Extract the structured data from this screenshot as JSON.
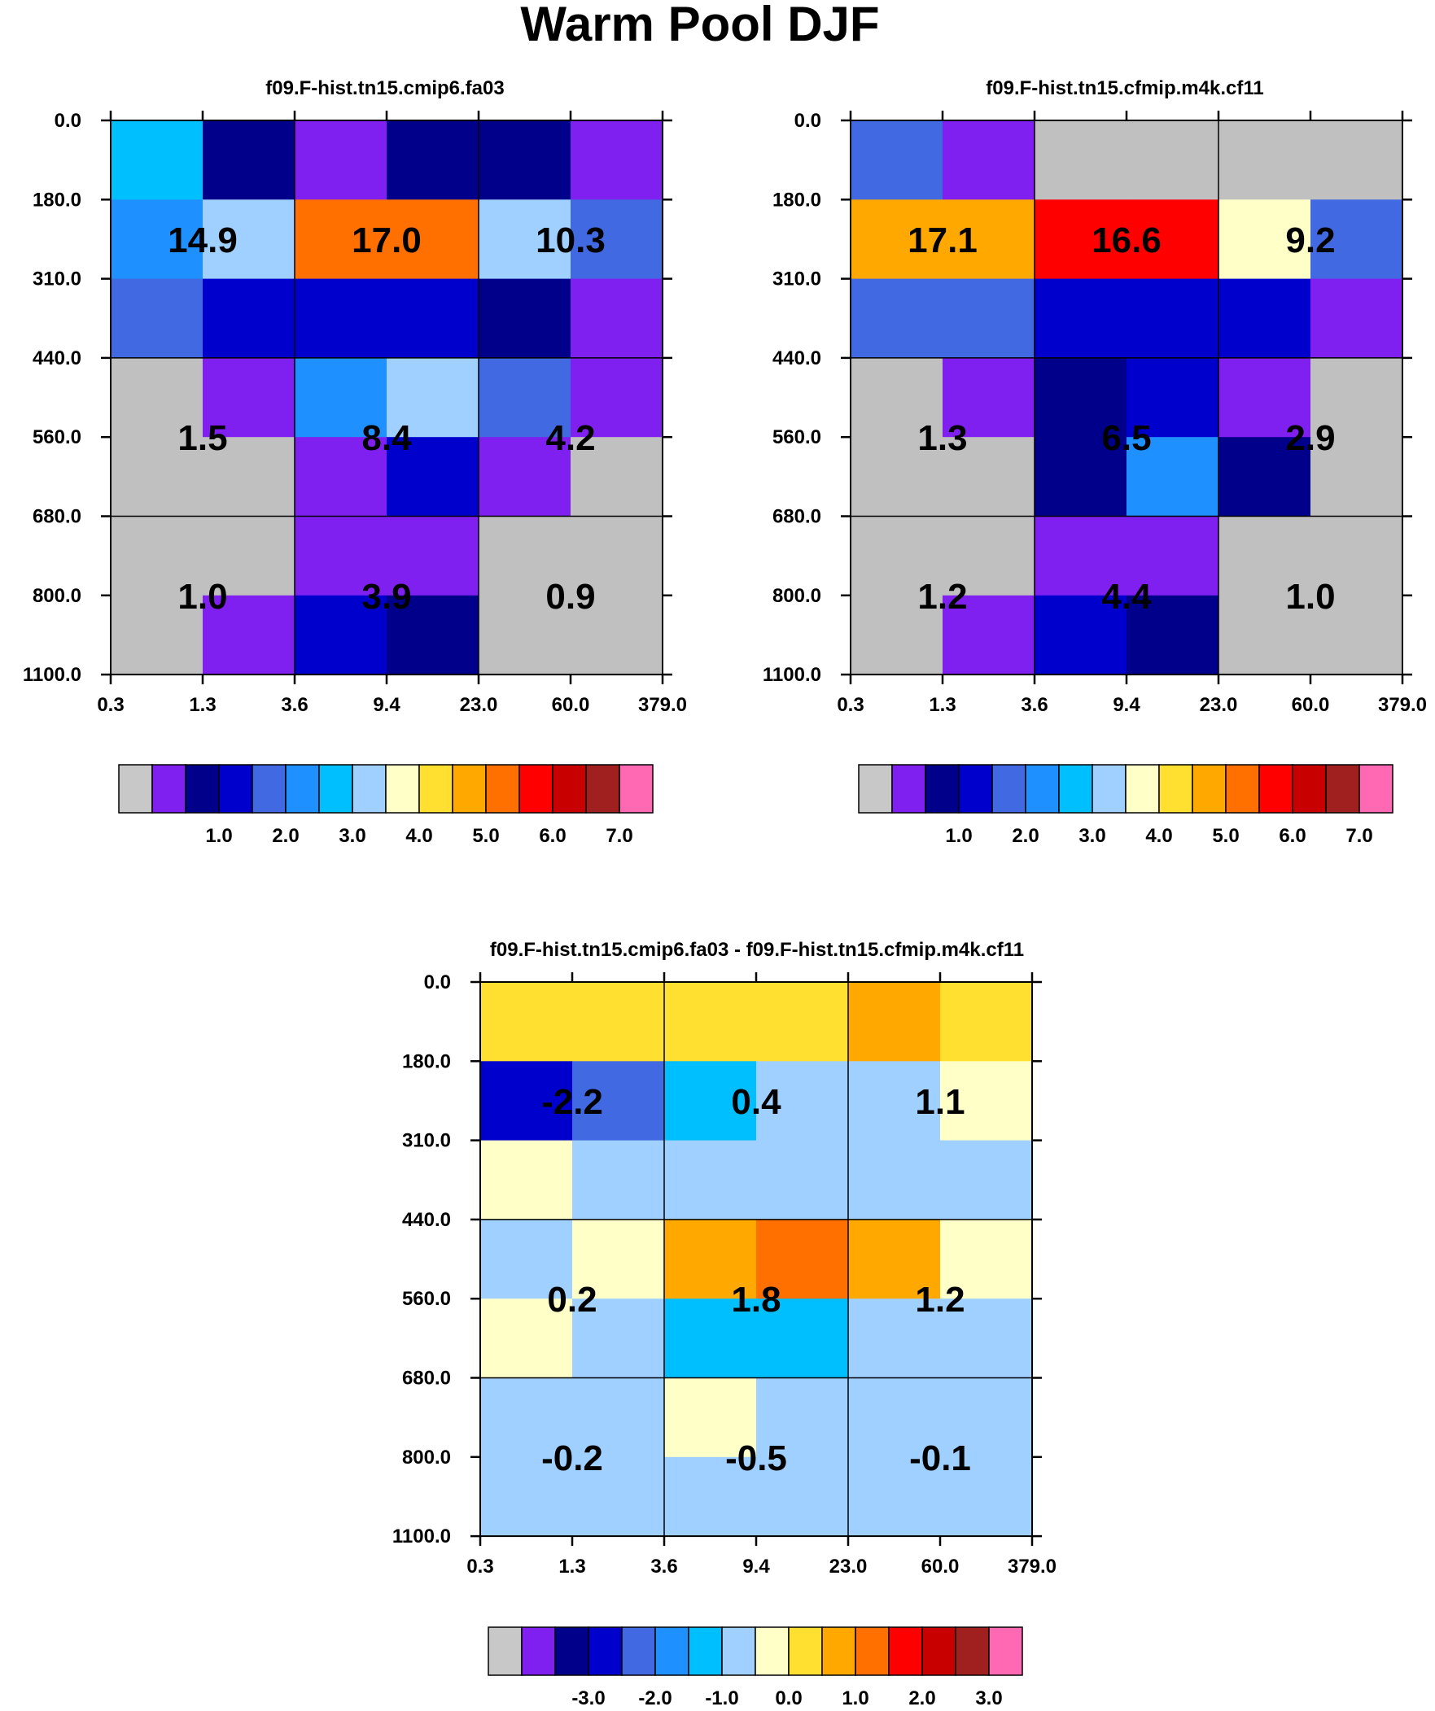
{
  "title": "Warm Pool DJF",
  "chart_data": [
    {
      "type": "heatmap",
      "title": "f09.F-hist.tn15.cmip6.fa03",
      "x_ticks": [
        "0.3",
        "1.3",
        "3.6",
        "9.4",
        "23.0",
        "60.0",
        "379.0"
      ],
      "y_ticks": [
        "0.0",
        "180.0",
        "310.0",
        "440.0",
        "560.0",
        "680.0",
        "800.0",
        "1100.0"
      ],
      "cells": [
        [
          "#00bfff",
          "#00008b",
          "#8020f0",
          "#00008b",
          "#00008b",
          "#8020f0"
        ],
        [
          "#1e90ff",
          "#a0d0ff",
          "#ff7000",
          "#ff7000",
          "#a0d0ff",
          "#4169e1"
        ],
        [
          "#4169e1",
          "#0000cd",
          "#0000cd",
          "#0000cd",
          "#00008b",
          "#8020f0"
        ],
        [
          "#c0c0c0",
          "#8020f0",
          "#1e90ff",
          "#a0d0ff",
          "#4169e1",
          "#8020f0"
        ],
        [
          "#c0c0c0",
          "#c0c0c0",
          "#8020f0",
          "#0000cd",
          "#8020f0",
          "#c0c0c0"
        ],
        [
          "#c0c0c0",
          "#c0c0c0",
          "#8020f0",
          "#8020f0",
          "#c0c0c0",
          "#c0c0c0"
        ],
        [
          "#c0c0c0",
          "#8020f0",
          "#0000cd",
          "#00008b",
          "#c0c0c0",
          "#c0c0c0"
        ]
      ],
      "block_values": [
        [
          "14.9",
          "17.0",
          "10.3"
        ],
        [
          "1.5",
          "8.4",
          "4.2"
        ],
        [
          "1.0",
          "3.9",
          "0.9"
        ]
      ],
      "colorbar": {
        "colors": [
          "#c8c8c8",
          "#8020f0",
          "#00008b",
          "#0000cd",
          "#4169e1",
          "#1e90ff",
          "#00bfff",
          "#a0d0ff",
          "#ffffc8",
          "#ffe030",
          "#ffa800",
          "#ff7000",
          "#ff0000",
          "#c80000",
          "#a02020",
          "#ff69b4"
        ],
        "labels": [
          "1.0",
          "2.0",
          "3.0",
          "4.0",
          "5.0",
          "6.0",
          "7.0"
        ]
      }
    },
    {
      "type": "heatmap",
      "title": "f09.F-hist.tn15.cfmip.m4k.cf11",
      "x_ticks": [
        "0.3",
        "1.3",
        "3.6",
        "9.4",
        "23.0",
        "60.0",
        "379.0"
      ],
      "y_ticks": [
        "0.0",
        "180.0",
        "310.0",
        "440.0",
        "560.0",
        "680.0",
        "800.0",
        "1100.0"
      ],
      "cells": [
        [
          "#4169e1",
          "#8020f0",
          "#c0c0c0",
          "#c0c0c0",
          "#c0c0c0",
          "#c0c0c0"
        ],
        [
          "#ffa800",
          "#ffa800",
          "#ff0000",
          "#ff0000",
          "#ffffc8",
          "#4169e1"
        ],
        [
          "#4169e1",
          "#4169e1",
          "#0000cd",
          "#0000cd",
          "#0000cd",
          "#8020f0"
        ],
        [
          "#c0c0c0",
          "#8020f0",
          "#00008b",
          "#0000cd",
          "#8020f0",
          "#c0c0c0"
        ],
        [
          "#c0c0c0",
          "#c0c0c0",
          "#00008b",
          "#1e90ff",
          "#00008b",
          "#c0c0c0"
        ],
        [
          "#c0c0c0",
          "#c0c0c0",
          "#8020f0",
          "#8020f0",
          "#c0c0c0",
          "#c0c0c0"
        ],
        [
          "#c0c0c0",
          "#8020f0",
          "#0000cd",
          "#00008b",
          "#c0c0c0",
          "#c0c0c0"
        ]
      ],
      "block_values": [
        [
          "17.1",
          "16.6",
          "9.2"
        ],
        [
          "1.3",
          "6.5",
          "2.9"
        ],
        [
          "1.2",
          "4.4",
          "1.0"
        ]
      ],
      "colorbar": {
        "colors": [
          "#c8c8c8",
          "#8020f0",
          "#00008b",
          "#0000cd",
          "#4169e1",
          "#1e90ff",
          "#00bfff",
          "#a0d0ff",
          "#ffffc8",
          "#ffe030",
          "#ffa800",
          "#ff7000",
          "#ff0000",
          "#c80000",
          "#a02020",
          "#ff69b4"
        ],
        "labels": [
          "1.0",
          "2.0",
          "3.0",
          "4.0",
          "5.0",
          "6.0",
          "7.0"
        ]
      }
    },
    {
      "type": "heatmap",
      "title": "f09.F-hist.tn15.cmip6.fa03 - f09.F-hist.tn15.cfmip.m4k.cf11",
      "x_ticks": [
        "0.3",
        "1.3",
        "3.6",
        "9.4",
        "23.0",
        "60.0",
        "379.0"
      ],
      "y_ticks": [
        "0.0",
        "180.0",
        "310.0",
        "440.0",
        "560.0",
        "680.0",
        "800.0",
        "1100.0"
      ],
      "cells": [
        [
          "#ffe030",
          "#ffe030",
          "#ffe030",
          "#ffe030",
          "#ffa800",
          "#ffe030"
        ],
        [
          "#0000cd",
          "#4169e1",
          "#00bfff",
          "#a0d0ff",
          "#a0d0ff",
          "#ffffc8"
        ],
        [
          "#ffffc8",
          "#a0d0ff",
          "#a0d0ff",
          "#a0d0ff",
          "#a0d0ff",
          "#a0d0ff"
        ],
        [
          "#a0d0ff",
          "#ffffc8",
          "#ffa800",
          "#ff7000",
          "#ffa800",
          "#ffffc8"
        ],
        [
          "#ffffc8",
          "#a0d0ff",
          "#00bfff",
          "#00bfff",
          "#a0d0ff",
          "#a0d0ff"
        ],
        [
          "#a0d0ff",
          "#a0d0ff",
          "#ffffc8",
          "#a0d0ff",
          "#a0d0ff",
          "#a0d0ff"
        ],
        [
          "#a0d0ff",
          "#a0d0ff",
          "#a0d0ff",
          "#a0d0ff",
          "#a0d0ff",
          "#a0d0ff"
        ]
      ],
      "block_values": [
        [
          "-2.2",
          "0.4",
          "1.1"
        ],
        [
          "0.2",
          "1.8",
          "1.2"
        ],
        [
          "-0.2",
          "-0.5",
          "-0.1"
        ]
      ],
      "colorbar": {
        "colors": [
          "#c8c8c8",
          "#8020f0",
          "#00008b",
          "#0000cd",
          "#4169e1",
          "#1e90ff",
          "#00bfff",
          "#a0d0ff",
          "#ffffc8",
          "#ffe030",
          "#ffa800",
          "#ff7000",
          "#ff0000",
          "#c80000",
          "#a02020",
          "#ff69b4"
        ],
        "labels": [
          "-3.0",
          "-2.0",
          "-1.0",
          "0.0",
          "1.0",
          "2.0",
          "3.0"
        ]
      }
    }
  ]
}
